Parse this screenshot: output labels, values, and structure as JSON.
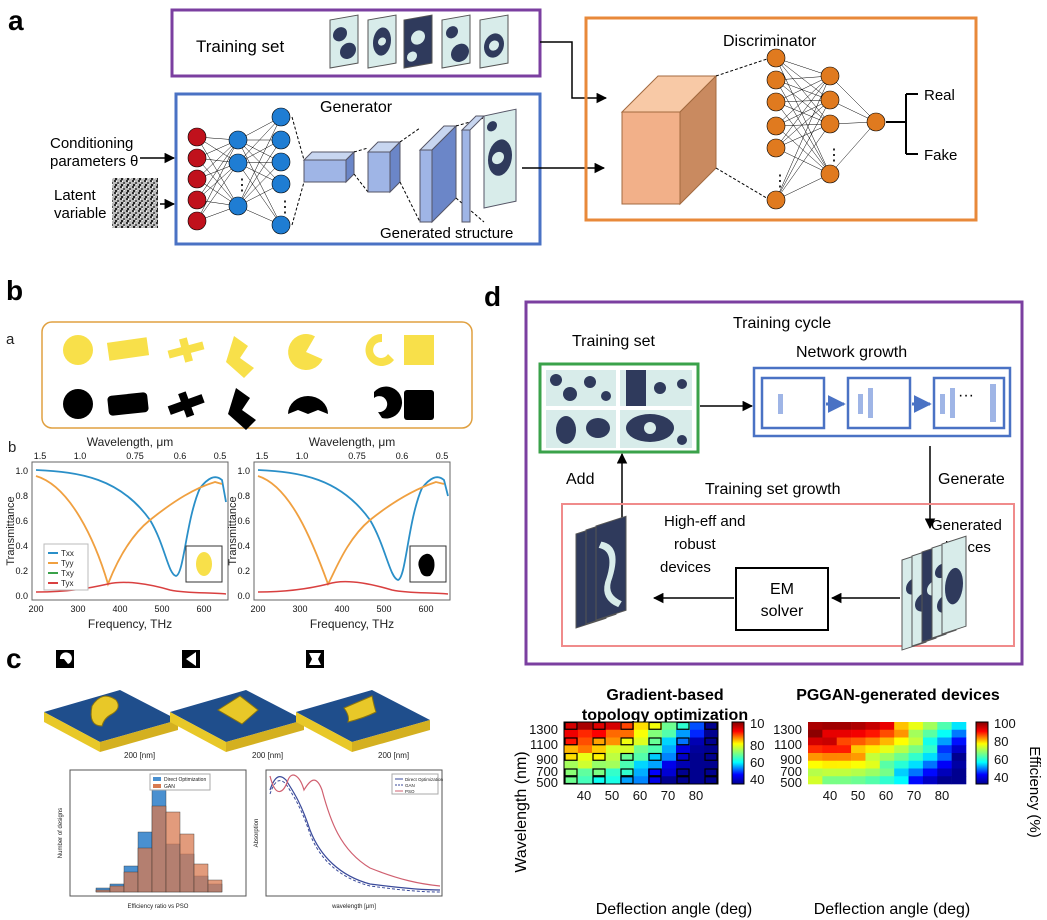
{
  "panel_labels": {
    "a": "a",
    "b": "b",
    "c": "c",
    "d": "d"
  },
  "panel_a": {
    "training_set": "Training set",
    "generator": "Generator",
    "discriminator": "Discriminator",
    "conditioning": [
      "Conditioning",
      "parameters θ"
    ],
    "latent": [
      "Latent",
      "variable"
    ],
    "generated_structure": "Generated structure",
    "real": "Real",
    "fake": "Fake",
    "dots": "⋮"
  },
  "panel_b": {
    "sub_a": "a",
    "sub_b": "b",
    "top_axis_label": "Wavelength, μm",
    "bottom_axis_label": "Frequency, THz",
    "y_axis_label": "Transmittance",
    "top_ticks": [
      "1.5",
      "1.0",
      "0.75",
      "0.6",
      "0.5"
    ],
    "bottom_ticks": [
      "200",
      "300",
      "400",
      "500",
      "600"
    ],
    "y_ticks": [
      "1.0",
      "0.8",
      "0.6",
      "0.4",
      "0.2",
      "0.0"
    ],
    "legend": [
      "Txx",
      "Tyy",
      "Txy",
      "Tyx"
    ]
  },
  "panel_c": {
    "scale_label": "200 [nm]",
    "hist_legend": [
      "Direct Optimization",
      "GAN"
    ],
    "hist_xlabel": "Efficiency ratio vs PSO",
    "hist_ylabel": "Number of designs",
    "line_legend": [
      "Direct Optimization",
      "GAN",
      "PSO"
    ],
    "line_xlabel": "wavelength [μm]",
    "line_ylabel": "Absorption"
  },
  "panel_d": {
    "training_cycle": "Training cycle",
    "training_set": "Training set",
    "network_growth": "Network growth",
    "add": "Add",
    "generate": "Generate",
    "training_set_growth": "Training set growth",
    "high_eff": [
      "High-eff and",
      "robust",
      "devices"
    ],
    "generated_devices": [
      "Generated",
      "devices"
    ],
    "em_solver": [
      "EM",
      "solver"
    ],
    "ellipsis": "···"
  },
  "heatmaps": {
    "left_title": [
      "Gradient-based",
      "topology optimization"
    ],
    "right_title": "PGGAN-generated devices",
    "xlabel": "Deflection angle (deg)",
    "ylabel": "Wavelength (nm)",
    "colorbar_label": "Efficiency (%)",
    "x_ticks": [
      "40",
      "50",
      "60",
      "70",
      "80"
    ],
    "y_ticks": [
      "1300",
      "1100",
      "900",
      "700",
      "500"
    ],
    "cbar_ticks": [
      "100",
      "80",
      "60",
      "40"
    ],
    "left_cbar_top": "10"
  },
  "colors": {
    "purple": "#7b3fa0",
    "blue": "#4a72c4",
    "orange": "#e8893a",
    "green": "#3aa24a",
    "salmon": "#f08b8b",
    "red_text": "#d42020",
    "pattern_dark": "#2f3a5c",
    "pattern_light": "#d8ecea"
  }
}
